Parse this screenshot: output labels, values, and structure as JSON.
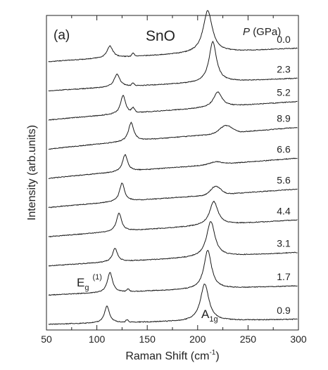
{
  "chart_data": {
    "type": "line",
    "panel_label": "(a)",
    "title": "SnO",
    "xlabel_main": "Raman Shift (cm",
    "xlabel_sup": "-1",
    "xlabel_close": ")",
    "ylabel": "Intensity (arb.units)",
    "legend_var": "P",
    "legend_unit": "(GPa)",
    "xlim": [
      50,
      300
    ],
    "xticks": [
      50,
      100,
      150,
      200,
      250,
      300
    ],
    "y_tick_labels": false,
    "grid": false,
    "annotations": {
      "eg_main": "E",
      "eg_sub": "g",
      "eg_sup": "(1)",
      "a1g_main": "A",
      "a1g_sub": "1g"
    },
    "series": [
      {
        "name": "0.0",
        "peaks": [
          {
            "x": 113,
            "h": 1.4,
            "w": 3.5
          },
          {
            "x": 136,
            "h": 0.4,
            "w": 1.2
          },
          {
            "x": 210,
            "h": 5.0,
            "w": 5.5
          }
        ],
        "baseline_start": 0.0,
        "baseline_end": 1.6
      },
      {
        "name": "2.3",
        "peaks": [
          {
            "x": 120,
            "h": 1.5,
            "w": 3.5
          },
          {
            "x": 136,
            "h": 0.3,
            "w": 1.2
          },
          {
            "x": 215,
            "h": 4.8,
            "w": 4.5
          }
        ],
        "baseline_start": 0.0,
        "baseline_end": 1.5
      },
      {
        "name": "5.2",
        "peaks": [
          {
            "x": 126,
            "h": 2.2,
            "w": 3.0
          },
          {
            "x": 136,
            "h": 0.5,
            "w": 1.5
          },
          {
            "x": 220,
            "h": 1.8,
            "w": 5.0
          }
        ],
        "baseline_start": 0.0,
        "baseline_end": 2.2
      },
      {
        "name": "8.9",
        "peaks": [
          {
            "x": 134,
            "h": 2.2,
            "w": 3.2
          },
          {
            "x": 228,
            "h": 0.9,
            "w": 6.0
          }
        ],
        "baseline_start": 0.0,
        "baseline_end": 2.6
      },
      {
        "name": "6.6",
        "peaks": [
          {
            "x": 128,
            "h": 2.0,
            "w": 3.0
          },
          {
            "x": 218,
            "h": 0.3,
            "w": 6.0
          }
        ],
        "baseline_start": 0.0,
        "baseline_end": 2.4
      },
      {
        "name": "5.6",
        "peaks": [
          {
            "x": 125,
            "h": 2.2,
            "w": 3.0
          },
          {
            "x": 218,
            "h": 1.0,
            "w": 5.0
          }
        ],
        "baseline_start": 0.0,
        "baseline_end": 2.2
      },
      {
        "name": "4.4",
        "peaks": [
          {
            "x": 122,
            "h": 2.2,
            "w": 3.0
          },
          {
            "x": 216,
            "h": 2.8,
            "w": 5.0
          }
        ],
        "baseline_start": 0.0,
        "baseline_end": 2.0
      },
      {
        "name": "3.1",
        "peaks": [
          {
            "x": 118,
            "h": 1.6,
            "w": 3.0
          },
          {
            "x": 213,
            "h": 4.2,
            "w": 5.0
          }
        ],
        "baseline_start": 0.0,
        "baseline_end": 1.6
      },
      {
        "name": "1.7",
        "peaks": [
          {
            "x": 113,
            "h": 2.4,
            "w": 3.0
          },
          {
            "x": 131,
            "h": 0.3,
            "w": 1.2
          },
          {
            "x": 210,
            "h": 4.6,
            "w": 4.5
          }
        ],
        "baseline_start": 0.0,
        "baseline_end": 1.1
      },
      {
        "name": "0.9",
        "peaks": [
          {
            "x": 110,
            "h": 2.0,
            "w": 3.0
          },
          {
            "x": 130,
            "h": 0.3,
            "w": 1.2
          },
          {
            "x": 207,
            "h": 4.4,
            "w": 5.0
          }
        ],
        "baseline_start": 0.0,
        "baseline_end": 0.6
      }
    ]
  }
}
